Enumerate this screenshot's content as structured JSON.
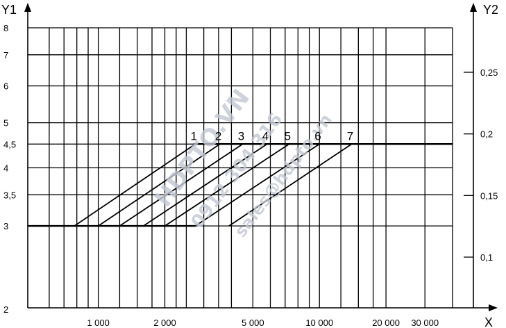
{
  "chart_data": {
    "type": "line",
    "y_axis_left": {
      "label": "Y1",
      "scale": "log",
      "range": [
        2,
        8
      ],
      "ticks": [
        {
          "v": 2,
          "t": "2"
        },
        {
          "v": 3,
          "t": "3"
        },
        {
          "v": 3.5,
          "t": "3,5"
        },
        {
          "v": 4,
          "t": "4"
        },
        {
          "v": 4.5,
          "t": "4,5"
        },
        {
          "v": 5,
          "t": "5"
        },
        {
          "v": 6,
          "t": "6"
        },
        {
          "v": 7,
          "t": "7"
        },
        {
          "v": 8,
          "t": "8"
        }
      ]
    },
    "y_axis_right": {
      "label": "Y2",
      "ticks": [
        {
          "v": 0.1,
          "t": "0,1"
        },
        {
          "v": 0.15,
          "t": "0,15"
        },
        {
          "v": 0.2,
          "t": "0,2"
        },
        {
          "v": 0.25,
          "t": "0,25"
        }
      ]
    },
    "x_axis": {
      "label": "X",
      "scale": "log",
      "range": [
        480,
        40000
      ],
      "labeled_ticks": [
        {
          "v": 1000,
          "t": "1 000"
        },
        {
          "v": 2000,
          "t": "2 000"
        },
        {
          "v": 5000,
          "t": "5 000"
        },
        {
          "v": 10000,
          "t": "10 000"
        },
        {
          "v": 20000,
          "t": "20 000"
        },
        {
          "v": 30000,
          "t": "30 000"
        }
      ],
      "gridlines": [
        600,
        700,
        800,
        900,
        1000,
        1250,
        1500,
        1750,
        2000,
        2250,
        2500,
        3000,
        3500,
        4000,
        5000,
        6000,
        7000,
        8000,
        9000,
        10000,
        12500,
        15000,
        17500,
        20000,
        30000,
        40000
      ]
    },
    "grid": true,
    "baseline": {
      "y": 3,
      "x": [
        480,
        2750
      ]
    },
    "plateau": {
      "y": 4.5,
      "x": [
        2700,
        40000
      ]
    },
    "series": [
      {
        "name": "1",
        "points": [
          [
            780,
            3
          ],
          [
            2750,
            4.5
          ]
        ]
      },
      {
        "name": "2",
        "points": [
          [
            1000,
            3
          ],
          [
            3550,
            4.5
          ]
        ]
      },
      {
        "name": "3",
        "points": [
          [
            1250,
            3
          ],
          [
            4500,
            4.5
          ]
        ]
      },
      {
        "name": "4",
        "points": [
          [
            1600,
            3
          ],
          [
            5800,
            4.5
          ]
        ]
      },
      {
        "name": "5",
        "points": [
          [
            2000,
            3
          ],
          [
            7300,
            4.5
          ]
        ]
      },
      {
        "name": "6",
        "points": [
          [
            2750,
            3
          ],
          [
            10000,
            4.5
          ]
        ]
      },
      {
        "name": "7",
        "points": [
          [
            3900,
            3
          ],
          [
            14000,
            4.5
          ]
        ]
      }
    ]
  },
  "watermark": {
    "line1": "HDPTO.VN",
    "line2": "0912 304 316",
    "line3": "sales@hdpto.vn"
  },
  "colors": {
    "line": "#000000",
    "watermark": "#c3c8d3"
  }
}
